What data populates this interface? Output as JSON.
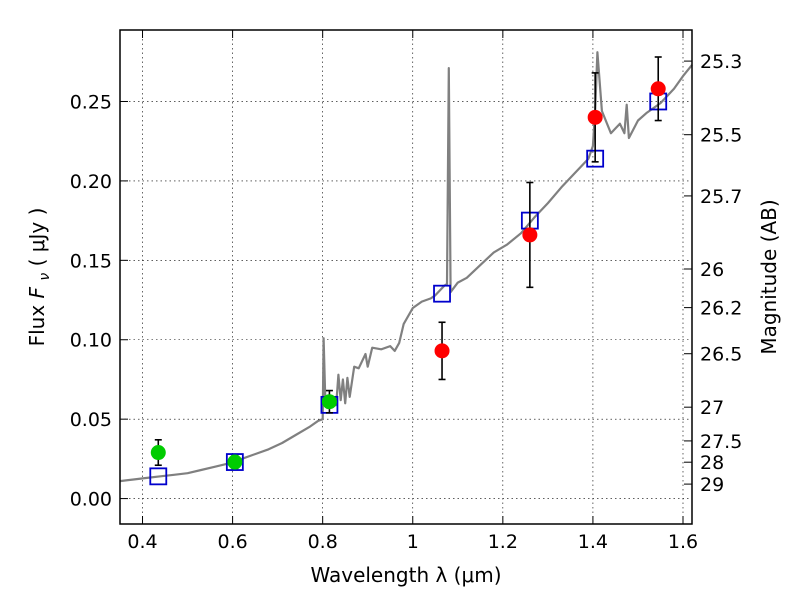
{
  "chart_data": {
    "type": "scatter",
    "xlabel": "Wavelength  λ (μm)",
    "ylabel_left": {
      "prefix": "Flux  ",
      "symbol": "F",
      "subscript": "ν",
      "unit": "  ( μJy )"
    },
    "ylabel_right": "Magnitude (AB)",
    "xlim": [
      0.35,
      1.62
    ],
    "ylim": [
      -0.016,
      0.295
    ],
    "grid": true,
    "x_ticks": [
      {
        "value": 0.4,
        "label": "0.4"
      },
      {
        "value": 0.6,
        "label": "0.6"
      },
      {
        "value": 0.8,
        "label": "0.8"
      },
      {
        "value": 1.0,
        "label": "1"
      },
      {
        "value": 1.2,
        "label": "1.2"
      },
      {
        "value": 1.4,
        "label": "1.4"
      },
      {
        "value": 1.6,
        "label": "1.6"
      }
    ],
    "y_ticks": [
      {
        "value": 0.0,
        "label": "0.00"
      },
      {
        "value": 0.05,
        "label": "0.05"
      },
      {
        "value": 0.1,
        "label": "0.10"
      },
      {
        "value": 0.15,
        "label": "0.15"
      },
      {
        "value": 0.2,
        "label": "0.20"
      },
      {
        "value": 0.25,
        "label": "0.25"
      }
    ],
    "right_ticks": [
      {
        "value": 25.3,
        "label": "25.3"
      },
      {
        "value": 25.5,
        "label": "25.5"
      },
      {
        "value": 25.7,
        "label": "25.7"
      },
      {
        "value": 26.0,
        "label": "26"
      },
      {
        "value": 26.2,
        "label": "26.2"
      },
      {
        "value": 26.5,
        "label": "26.5"
      },
      {
        "value": 27.0,
        "label": "27"
      },
      {
        "value": 27.5,
        "label": "27.5"
      },
      {
        "value": 28.0,
        "label": "28"
      },
      {
        "value": 29.0,
        "label": "29"
      }
    ],
    "series": [
      {
        "kind": "line",
        "color": "#808080",
        "points": [
          [
            0.35,
            0.011
          ],
          [
            0.38,
            0.012
          ],
          [
            0.41,
            0.013
          ],
          [
            0.44,
            0.014
          ],
          [
            0.47,
            0.015
          ],
          [
            0.5,
            0.016
          ],
          [
            0.53,
            0.018
          ],
          [
            0.56,
            0.02
          ],
          [
            0.59,
            0.022
          ],
          [
            0.62,
            0.025
          ],
          [
            0.65,
            0.028
          ],
          [
            0.68,
            0.031
          ],
          [
            0.71,
            0.035
          ],
          [
            0.74,
            0.04
          ],
          [
            0.77,
            0.045
          ],
          [
            0.79,
            0.049
          ],
          [
            0.8,
            0.05
          ],
          [
            0.802,
            0.101
          ],
          [
            0.806,
            0.06
          ],
          [
            0.81,
            0.057
          ],
          [
            0.83,
            0.059
          ],
          [
            0.835,
            0.078
          ],
          [
            0.84,
            0.062
          ],
          [
            0.845,
            0.075
          ],
          [
            0.85,
            0.06
          ],
          [
            0.855,
            0.076
          ],
          [
            0.86,
            0.064
          ],
          [
            0.87,
            0.083
          ],
          [
            0.88,
            0.082
          ],
          [
            0.895,
            0.091
          ],
          [
            0.9,
            0.083
          ],
          [
            0.91,
            0.095
          ],
          [
            0.93,
            0.094
          ],
          [
            0.95,
            0.096
          ],
          [
            0.96,
            0.093
          ],
          [
            0.97,
            0.098
          ],
          [
            0.98,
            0.11
          ],
          [
            1.0,
            0.12
          ],
          [
            1.02,
            0.124
          ],
          [
            1.04,
            0.126
          ],
          [
            1.05,
            0.128
          ],
          [
            1.06,
            0.131
          ],
          [
            1.07,
            0.134
          ],
          [
            1.076,
            0.135
          ],
          [
            1.08,
            0.271
          ],
          [
            1.084,
            0.13
          ],
          [
            1.1,
            0.136
          ],
          [
            1.12,
            0.139
          ],
          [
            1.15,
            0.147
          ],
          [
            1.18,
            0.155
          ],
          [
            1.21,
            0.16
          ],
          [
            1.24,
            0.167
          ],
          [
            1.27,
            0.177
          ],
          [
            1.3,
            0.186
          ],
          [
            1.33,
            0.196
          ],
          [
            1.36,
            0.205
          ],
          [
            1.39,
            0.214
          ],
          [
            1.4,
            0.222
          ],
          [
            1.405,
            0.245
          ],
          [
            1.41,
            0.281
          ],
          [
            1.42,
            0.244
          ],
          [
            1.44,
            0.23
          ],
          [
            1.46,
            0.236
          ],
          [
            1.47,
            0.23
          ],
          [
            1.475,
            0.248
          ],
          [
            1.48,
            0.227
          ],
          [
            1.5,
            0.238
          ],
          [
            1.52,
            0.243
          ],
          [
            1.55,
            0.249
          ],
          [
            1.58,
            0.258
          ],
          [
            1.6,
            0.266
          ],
          [
            1.62,
            0.273
          ]
        ]
      },
      {
        "kind": "open-square",
        "color": "#0000cc",
        "points": [
          [
            0.435,
            0.014
          ],
          [
            0.605,
            0.023
          ],
          [
            0.815,
            0.059
          ],
          [
            1.065,
            0.129
          ],
          [
            1.26,
            0.175
          ],
          [
            1.405,
            0.214
          ],
          [
            1.545,
            0.25
          ]
        ]
      },
      {
        "kind": "filled-circle",
        "color": "#00cc00",
        "points": [
          {
            "x": 0.435,
            "y": 0.029,
            "err": 0.008
          },
          {
            "x": 0.605,
            "y": 0.023,
            "err": 0.004
          },
          {
            "x": 0.815,
            "y": 0.061,
            "err": 0.007
          }
        ]
      },
      {
        "kind": "filled-circle",
        "color": "#ff0000",
        "points": [
          {
            "x": 1.065,
            "y": 0.093,
            "err": 0.018
          },
          {
            "x": 1.26,
            "y": 0.166,
            "err": 0.033
          },
          {
            "x": 1.405,
            "y": 0.24,
            "err": 0.028
          },
          {
            "x": 1.545,
            "y": 0.258,
            "err": 0.02
          }
        ]
      }
    ]
  }
}
